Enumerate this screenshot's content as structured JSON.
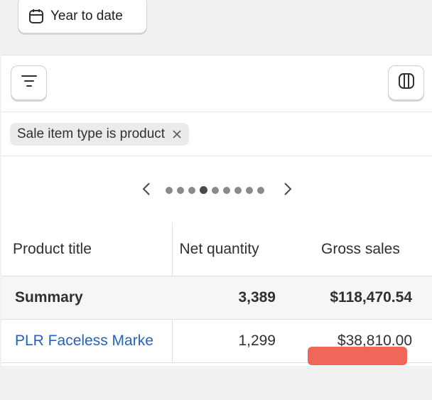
{
  "date_button": {
    "label": "Year to date",
    "icon": "calendar-icon"
  },
  "toolbar": {
    "filter_icon": "filter-icon",
    "columns_icon": "columns-icon"
  },
  "filter_chip": {
    "label": "Sale item type is product",
    "remove_icon": "close-icon"
  },
  "pager": {
    "dot_count": 9,
    "active_index": 3
  },
  "table": {
    "headers": [
      "Product title",
      "Net quantity",
      "Gross sales"
    ],
    "summary": {
      "label": "Summary",
      "net_quantity": "3,389",
      "gross_sales": "$118,470.54"
    },
    "rows": [
      {
        "product_title": "PLR Faceless Marke",
        "net_quantity": "1,299",
        "gross_sales": "$38,810.00"
      }
    ]
  },
  "colors": {
    "link": "#2463bc",
    "redaction": "#ef5a4c"
  }
}
